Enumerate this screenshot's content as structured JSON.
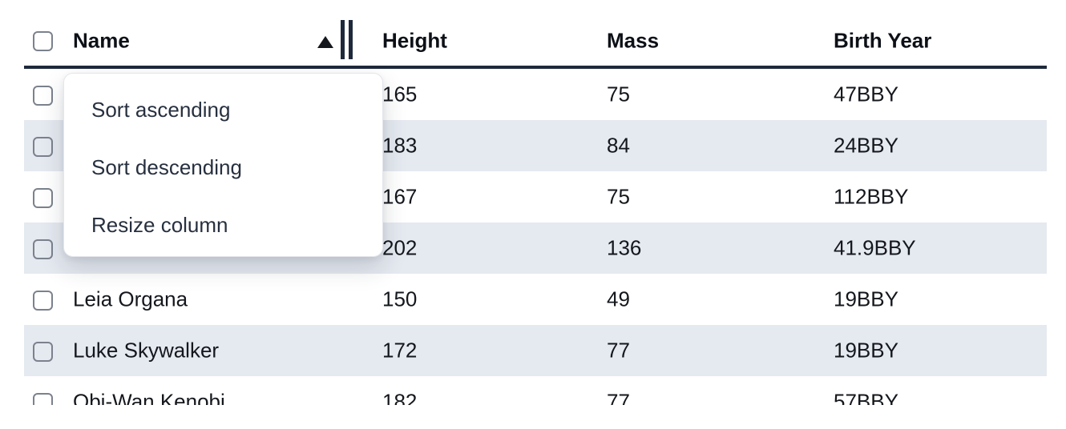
{
  "table": {
    "select_all_checkbox": "unchecked",
    "columns": [
      {
        "label": "Name",
        "sort": "ascending",
        "sort_icon": "ascending-triangle",
        "resize_icon": "double-bar-resize-handle"
      },
      {
        "label": "Height"
      },
      {
        "label": "Mass"
      },
      {
        "label": "Birth Year"
      }
    ],
    "rows": [
      {
        "checkbox": "unchecked",
        "name": "",
        "height": "165",
        "mass": "75",
        "birth_year": "47BBY"
      },
      {
        "checkbox": "unchecked",
        "name": "",
        "height": "183",
        "mass": "84",
        "birth_year": "24BBY"
      },
      {
        "checkbox": "unchecked",
        "name": "",
        "height": "167",
        "mass": "75",
        "birth_year": "112BBY"
      },
      {
        "checkbox": "unchecked",
        "name": "",
        "height": "202",
        "mass": "136",
        "birth_year": "41.9BBY"
      },
      {
        "checkbox": "unchecked",
        "name": "Leia Organa",
        "height": "150",
        "mass": "49",
        "birth_year": "19BBY"
      },
      {
        "checkbox": "unchecked",
        "name": "Luke Skywalker",
        "height": "172",
        "mass": "77",
        "birth_year": "19BBY"
      },
      {
        "checkbox": "unchecked",
        "name": "Obi-Wan Kenobi",
        "height": "182",
        "mass": "77",
        "birth_year": "57BBY"
      }
    ]
  },
  "context_menu": {
    "items": [
      {
        "label": "Sort ascending"
      },
      {
        "label": "Sort descending"
      },
      {
        "label": "Resize column"
      }
    ]
  },
  "colors": {
    "header_underline": "#1e293b",
    "row_stripe": "#e5e9f0",
    "cell_text": "#14171c",
    "header_text": "#0d1117",
    "menu_text": "#27303f",
    "checkbox_border": "#7b828d",
    "sort_icon": "#14171c"
  }
}
